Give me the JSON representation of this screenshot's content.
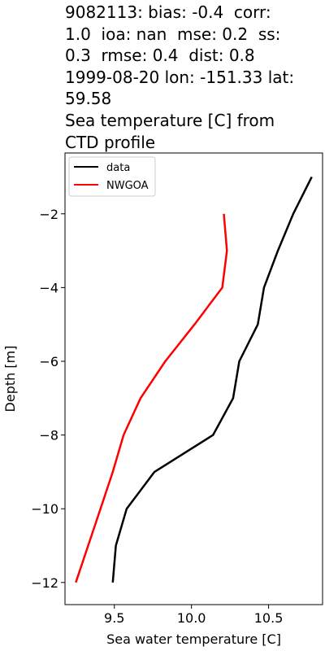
{
  "title_lines": [
    "9082113: bias: -0.4  corr:",
    "1.0  ioa: nan  mse: 0.2  ss:",
    "0.3  rmse: 0.4  dist: 0.8",
    "1999-08-20 lon: -151.33 lat:",
    "59.58",
    "Sea temperature [C] from",
    "CTD profile"
  ],
  "chart_data": {
    "type": "line",
    "xlabel": "Sea water temperature [C]",
    "ylabel": "Depth [m]",
    "xlim": [
      9.18,
      10.85
    ],
    "ylim": [
      -12.6,
      -0.35
    ],
    "xticks": [
      9.5,
      10.0,
      10.5
    ],
    "xtick_labels": [
      "9.5",
      "10.0",
      "10.5"
    ],
    "yticks": [
      -2,
      -4,
      -6,
      -8,
      -10,
      -12
    ],
    "ytick_labels": [
      "−2",
      "−4",
      "−6",
      "−8",
      "−10",
      "−12"
    ],
    "grid": false,
    "legend_position": "top-left",
    "series": [
      {
        "name": "data",
        "color": "#000000",
        "x": [
          10.78,
          10.66,
          10.56,
          10.47,
          10.43,
          10.31,
          10.27,
          10.14,
          9.76,
          9.58,
          9.51,
          9.49
        ],
        "y": [
          -1,
          -2,
          -3,
          -4,
          -5,
          -6,
          -7,
          -8,
          -9,
          -10,
          -11,
          -12
        ]
      },
      {
        "name": "NWGOA",
        "color": "#ff0000",
        "x": [
          10.21,
          10.23,
          10.2,
          10.02,
          9.83,
          9.67,
          9.56,
          9.49,
          9.41,
          9.33,
          9.25
        ],
        "y": [
          -2,
          -3,
          -4,
          -5,
          -6,
          -7,
          -8,
          -9,
          -10,
          -11,
          -12
        ]
      }
    ]
  }
}
